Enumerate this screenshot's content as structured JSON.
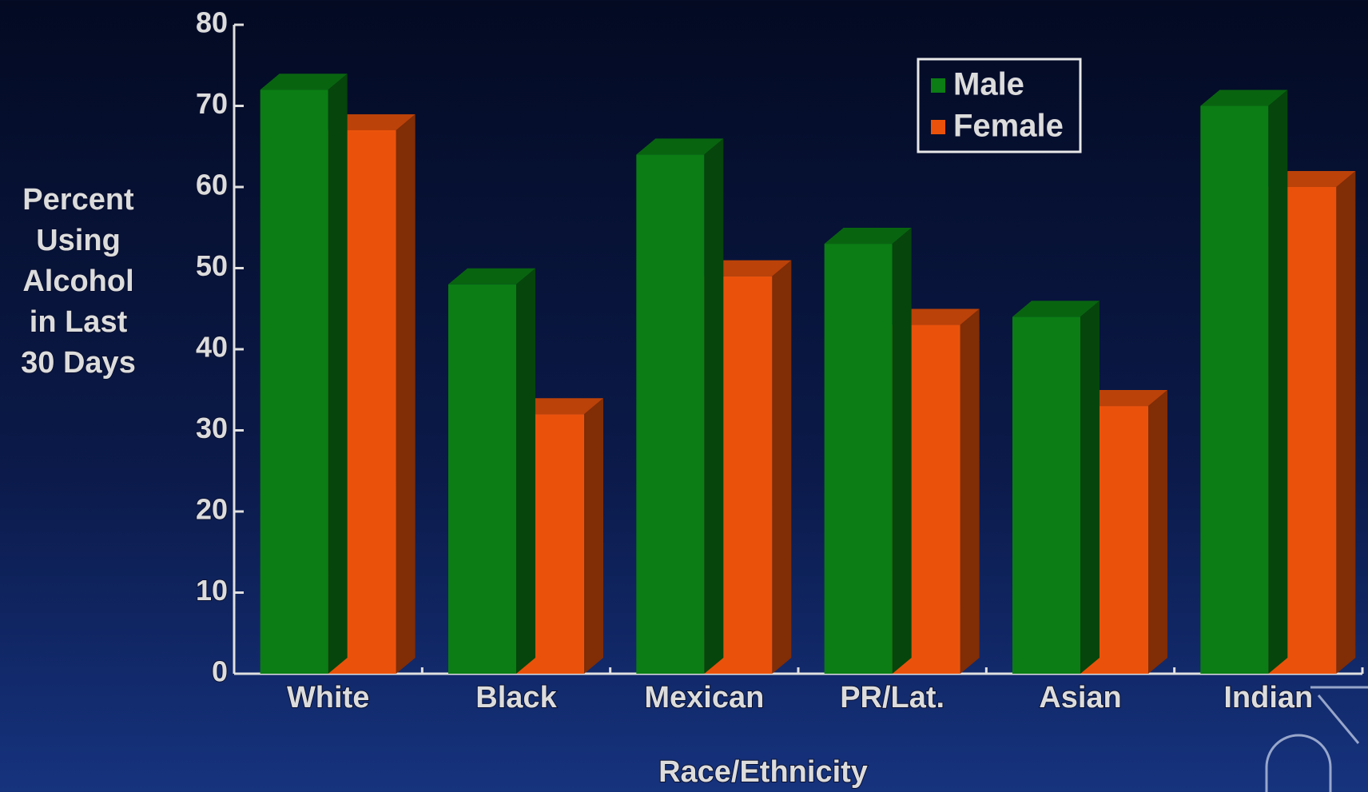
{
  "chart_data": {
    "type": "bar3d",
    "ylabel": [
      "Percent",
      "Using",
      "Alcohol",
      "in Last",
      "30 Days"
    ],
    "xlabel": "Race/Ethnicity",
    "categories": [
      "White",
      "Black",
      "Mexican",
      "PR/Lat.",
      "Asian",
      "Indian"
    ],
    "series": [
      {
        "name": "Male",
        "color": "#0b7d14",
        "values": [
          72,
          48,
          64,
          53,
          44,
          70
        ]
      },
      {
        "name": "Female",
        "color": "#ea520b",
        "values": [
          67,
          32,
          49,
          43,
          33,
          60
        ]
      }
    ],
    "ylim": [
      0,
      80
    ],
    "yticks": [
      0,
      10,
      20,
      30,
      40,
      50,
      60,
      70,
      80
    ],
    "legend": "upper right"
  }
}
